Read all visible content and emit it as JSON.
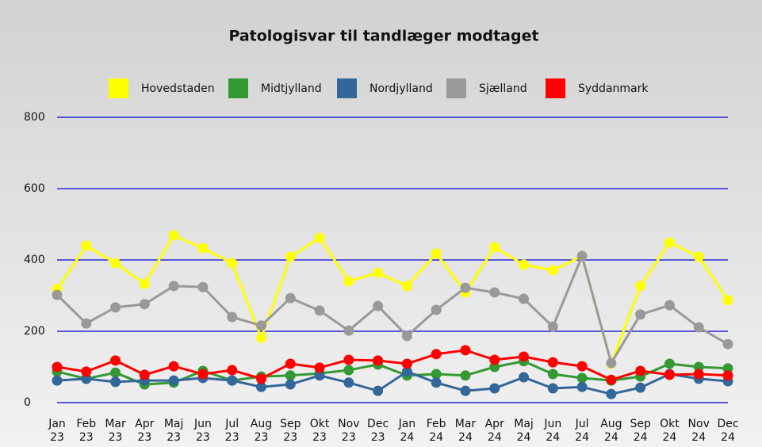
{
  "chart_data": {
    "type": "line",
    "title": "Patologisvar til tandlæger modtaget",
    "categories": [
      "Jan 23",
      "Feb 23",
      "Mar 23",
      "Apr 23",
      "Maj 23",
      "Jun 23",
      "Jul 23",
      "Aug 23",
      "Sep 23",
      "Okt 23",
      "Nov 23",
      "Dec 23",
      "Jan 24",
      "Feb 24",
      "Mar 24",
      "Apr 24",
      "Maj 24",
      "Jun 24",
      "Jul 24",
      "Aug 24",
      "Sep 24",
      "Okt 24",
      "Nov 24",
      "Dec 24"
    ],
    "series": [
      {
        "name": "Hovedstaden",
        "color": "#ffff00",
        "values": [
          318,
          440,
          391,
          333,
          469,
          433,
          391,
          182,
          409,
          462,
          340,
          364,
          327,
          418,
          309,
          436,
          387,
          371,
          411,
          109,
          327,
          449,
          409,
          287
        ]
      },
      {
        "name": "Midtjylland",
        "color": "#339933",
        "values": [
          87,
          67,
          84,
          51,
          56,
          89,
          62,
          73,
          76,
          82,
          91,
          107,
          76,
          80,
          76,
          100,
          116,
          80,
          69,
          62,
          73,
          109,
          100,
          96
        ]
      },
      {
        "name": "Nordjylland",
        "color": "#336699",
        "values": [
          62,
          67,
          58,
          62,
          62,
          69,
          62,
          44,
          51,
          76,
          56,
          33,
          87,
          56,
          33,
          40,
          71,
          40,
          44,
          24,
          42,
          80,
          67,
          60
        ]
      },
      {
        "name": "Sjælland",
        "color": "#999999",
        "values": [
          302,
          222,
          267,
          276,
          327,
          324,
          240,
          216,
          293,
          258,
          202,
          271,
          187,
          260,
          322,
          309,
          291,
          213,
          411,
          111,
          247,
          273,
          211,
          164
        ]
      },
      {
        "name": "Syddanmark",
        "color": "#ff0000",
        "values": [
          100,
          87,
          118,
          78,
          102,
          80,
          91,
          67,
          109,
          98,
          120,
          118,
          109,
          136,
          147,
          120,
          129,
          113,
          102,
          64,
          89,
          78,
          80,
          76
        ]
      }
    ],
    "ylim": [
      0,
      800
    ],
    "yticks": [
      0,
      200,
      400,
      600,
      800
    ],
    "grid": true,
    "grid_color": "#0000cc"
  }
}
